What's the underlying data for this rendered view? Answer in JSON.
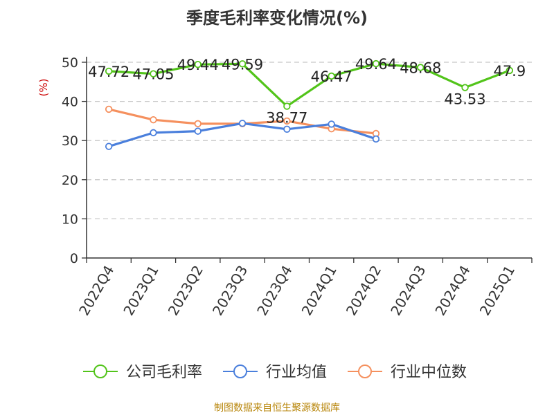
{
  "chart_data": {
    "type": "line",
    "title": "季度毛利率变化情况(%)",
    "ylabel": "(%)",
    "xlabel": "",
    "ylim": [
      0,
      50
    ],
    "yticks": [
      0,
      10,
      20,
      30,
      40,
      50
    ],
    "grid": true,
    "legend_position": "bottom",
    "categories": [
      "2022Q4",
      "2023Q1",
      "2023Q2",
      "2023Q3",
      "2023Q4",
      "2024Q1",
      "2024Q2",
      "2024Q3",
      "2024Q4",
      "2025Q1"
    ],
    "series": [
      {
        "name": "公司毛利率",
        "color": "#52c41a",
        "values": [
          47.72,
          47.05,
          49.44,
          49.59,
          38.77,
          46.47,
          49.64,
          48.68,
          43.53,
          47.9
        ],
        "labels": [
          "47.72",
          "47.05",
          "49.44",
          "49.59",
          "38.77",
          "46.47",
          "49.64",
          "48.68",
          "43.53",
          "47.9"
        ]
      },
      {
        "name": "行业均值",
        "color": "#4a7fdc",
        "values": [
          28.5,
          32.0,
          32.4,
          34.4,
          32.9,
          34.2,
          30.4,
          null,
          null,
          null
        ]
      },
      {
        "name": "行业中位数",
        "color": "#f5905e",
        "values": [
          38.0,
          35.3,
          34.3,
          34.3,
          35.0,
          33.0,
          31.8,
          null,
          null,
          null
        ]
      }
    ]
  },
  "source": "制图数据来自恒生聚源数据库"
}
